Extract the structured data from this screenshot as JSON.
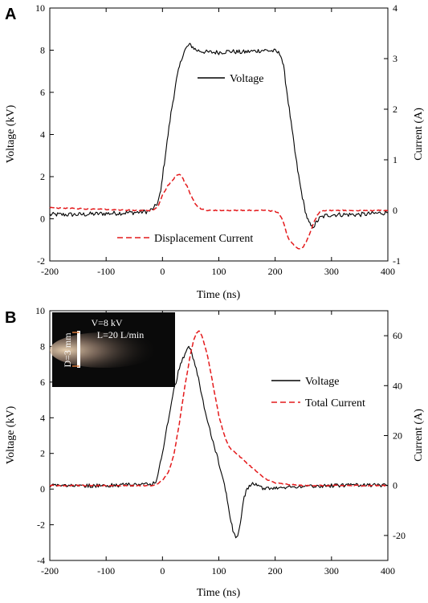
{
  "chart_data": [
    {
      "panel": "A",
      "type": "line",
      "xlabel": "Time (ns)",
      "ylabel_left": "Voltage (kV)",
      "ylabel_right": "Current (A)",
      "xlim": [
        -200,
        400
      ],
      "ylim_left": [
        -2,
        10
      ],
      "ylim_right": [
        -1,
        4
      ],
      "xticks": [
        -200,
        -100,
        0,
        100,
        200,
        300,
        400
      ],
      "yticks_left": [
        -2,
        0,
        2,
        4,
        6,
        8,
        10
      ],
      "yticks_right": [
        -1,
        0,
        1,
        2,
        3,
        4
      ],
      "grid": false,
      "legend_location": "inline",
      "series": [
        {
          "name": "Voltage",
          "axis": "left",
          "color": "#000000",
          "style": "solid",
          "x": [
            -200,
            -150,
            -100,
            -50,
            -25,
            -15,
            -8,
            -3,
            0,
            5,
            10,
            15,
            20,
            25,
            30,
            35,
            40,
            45,
            50,
            60,
            80,
            100,
            120,
            140,
            160,
            180,
            200,
            210,
            215,
            220,
            225,
            230,
            235,
            240,
            245,
            250,
            255,
            260,
            265,
            270,
            275,
            280,
            290,
            300,
            350,
            400
          ],
          "y": [
            0.2,
            0.2,
            0.25,
            0.3,
            0.35,
            0.5,
            0.8,
            1.3,
            2.0,
            3.0,
            4.0,
            5.0,
            5.8,
            6.6,
            7.2,
            7.7,
            8.0,
            8.2,
            8.25,
            8.0,
            7.9,
            7.9,
            7.95,
            7.9,
            7.95,
            8.0,
            7.95,
            7.8,
            7.2,
            6.2,
            5.2,
            4.2,
            3.2,
            2.3,
            1.5,
            0.8,
            0.2,
            -0.2,
            -0.4,
            -0.3,
            -0.1,
            0.05,
            0.15,
            0.2,
            0.2,
            0.3
          ]
        },
        {
          "name": "Displacement Current",
          "axis": "right",
          "color": "#e41a1c",
          "style": "dashed",
          "x": [
            -200,
            -100,
            -50,
            -20,
            -10,
            -5,
            0,
            5,
            10,
            15,
            20,
            25,
            30,
            35,
            40,
            45,
            50,
            55,
            60,
            70,
            80,
            100,
            150,
            180,
            200,
            205,
            210,
            215,
            220,
            225,
            230,
            235,
            240,
            245,
            250,
            255,
            260,
            265,
            270,
            275,
            280,
            290,
            300,
            350,
            400
          ],
          "y": [
            0.05,
            0.02,
            0.0,
            0.0,
            0.05,
            0.15,
            0.3,
            0.4,
            0.5,
            0.55,
            0.62,
            0.7,
            0.72,
            0.65,
            0.55,
            0.45,
            0.3,
            0.2,
            0.1,
            0.02,
            0.0,
            0.0,
            0.0,
            0.0,
            -0.02,
            -0.05,
            -0.12,
            -0.25,
            -0.45,
            -0.58,
            -0.65,
            -0.7,
            -0.75,
            -0.75,
            -0.72,
            -0.62,
            -0.5,
            -0.35,
            -0.2,
            -0.1,
            -0.02,
            0.0,
            0.0,
            0.0,
            0.0
          ]
        }
      ]
    },
    {
      "panel": "B",
      "type": "line",
      "xlabel": "Time (ns)",
      "ylabel_left": "Voltage (kV)",
      "ylabel_right": "Current (A)",
      "xlim": [
        -200,
        400
      ],
      "ylim_left": [
        -4,
        10
      ],
      "ylim_right": [
        -30,
        70
      ],
      "xticks": [
        -200,
        -100,
        0,
        100,
        200,
        300,
        400
      ],
      "yticks_left": [
        -4,
        -2,
        0,
        2,
        4,
        6,
        8,
        10
      ],
      "yticks_right": [
        -20,
        0,
        20,
        40,
        60
      ],
      "grid": false,
      "legend_location": "right",
      "series": [
        {
          "name": "Voltage",
          "axis": "left",
          "color": "#000000",
          "style": "solid",
          "x": [
            -200,
            -100,
            -50,
            -20,
            -10,
            0,
            10,
            20,
            30,
            40,
            45,
            50,
            60,
            70,
            80,
            90,
            100,
            110,
            115,
            120,
            125,
            130,
            135,
            140,
            145,
            150,
            160,
            170,
            180,
            190,
            200,
            250,
            300,
            350,
            400
          ],
          "y": [
            0.2,
            0.2,
            0.25,
            0.3,
            0.5,
            2.0,
            3.8,
            5.5,
            6.8,
            7.6,
            8.0,
            7.8,
            6.8,
            5.2,
            3.8,
            2.6,
            1.5,
            0.2,
            -0.6,
            -1.5,
            -2.3,
            -2.8,
            -2.4,
            -1.5,
            -0.5,
            0.0,
            0.3,
            0.2,
            0.0,
            0.05,
            0.1,
            0.15,
            0.2,
            0.25,
            0.2
          ]
        },
        {
          "name": "Total Current",
          "axis": "right",
          "color": "#e41a1c",
          "style": "dashed",
          "x": [
            -200,
            -100,
            -50,
            -20,
            -10,
            0,
            10,
            20,
            30,
            40,
            50,
            55,
            60,
            65,
            70,
            80,
            90,
            100,
            110,
            115,
            120,
            130,
            140,
            150,
            160,
            170,
            180,
            190,
            200,
            220,
            250,
            300,
            400
          ],
          "y": [
            0,
            0,
            0,
            0,
            0.5,
            2,
            5,
            12,
            25,
            40,
            53,
            58,
            61,
            62,
            60,
            52,
            40,
            28,
            20,
            17,
            15,
            13,
            11,
            9,
            7,
            5,
            3,
            2,
            1,
            0.5,
            0,
            0,
            0
          ]
        }
      ]
    }
  ],
  "panels": {
    "a": {
      "letter": "A",
      "legend_voltage": "Voltage",
      "legend_current": "Displacement Current"
    },
    "b": {
      "letter": "B",
      "legend_voltage": "Voltage",
      "legend_current": "Total Current",
      "inset": {
        "line1": "V=8 kV",
        "line2": "L=20 L/min",
        "vertical_label": "D=3 mm"
      }
    }
  },
  "colors": {
    "voltage": "#000000",
    "current": "#e41a1c",
    "inset_background": "#0a0a0a"
  }
}
